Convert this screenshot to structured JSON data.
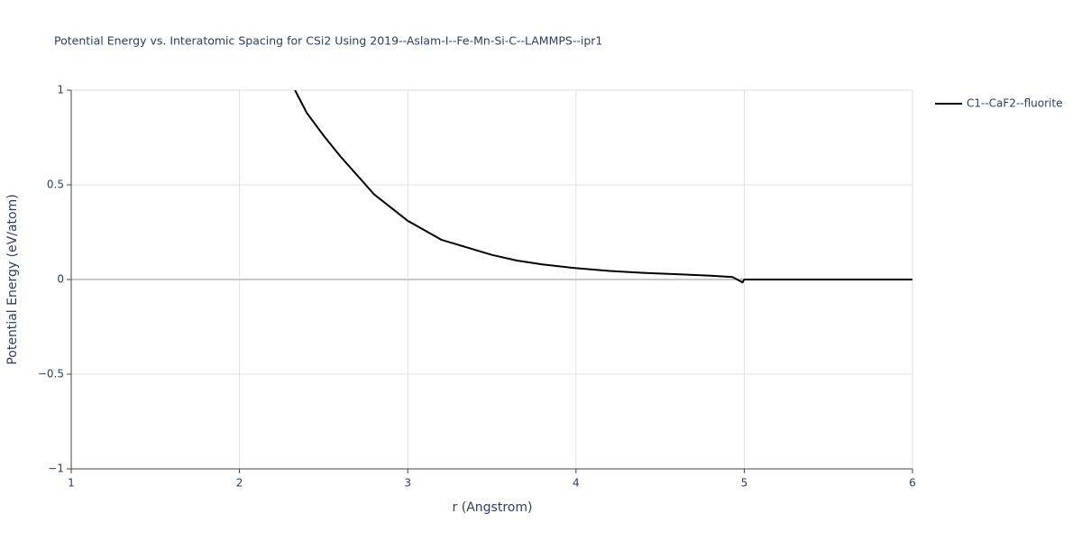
{
  "chart_data": {
    "type": "line",
    "title": "Potential Energy vs. Interatomic Spacing for CSi2 Using 2019--Aslam-I--Fe-Mn-Si-C--LAMMPS--ipr1",
    "x_label": "r (Angstrom)",
    "y_label": "Potential Energy (eV/atom)",
    "x": [
      2.33,
      2.4,
      2.5,
      2.6,
      2.7,
      2.8,
      2.9,
      3.0,
      3.1,
      3.2,
      3.35,
      3.5,
      3.65,
      3.8,
      4.0,
      4.2,
      4.4,
      4.6,
      4.8,
      4.93,
      4.99,
      5.0,
      5.5,
      6.0
    ],
    "series": [
      {
        "name": "C1--CaF2--fluorite",
        "color": "#000000",
        "values": [
          1.0,
          0.88,
          0.76,
          0.65,
          0.55,
          0.45,
          0.38,
          0.31,
          0.26,
          0.21,
          0.17,
          0.13,
          0.1,
          0.08,
          0.06,
          0.045,
          0.035,
          0.028,
          0.02,
          0.013,
          -0.015,
          0.0,
          0.0,
          0.0
        ]
      }
    ],
    "xlim": [
      1,
      6
    ],
    "ylim": [
      -1,
      1
    ],
    "xticks": [
      1,
      2,
      3,
      4,
      5,
      6
    ],
    "yticks": [
      {
        "value": -1,
        "label": "−1"
      },
      {
        "value": -0.5,
        "label": "−0.5"
      },
      0,
      0.5,
      1
    ],
    "grid": true,
    "legend": "right"
  }
}
